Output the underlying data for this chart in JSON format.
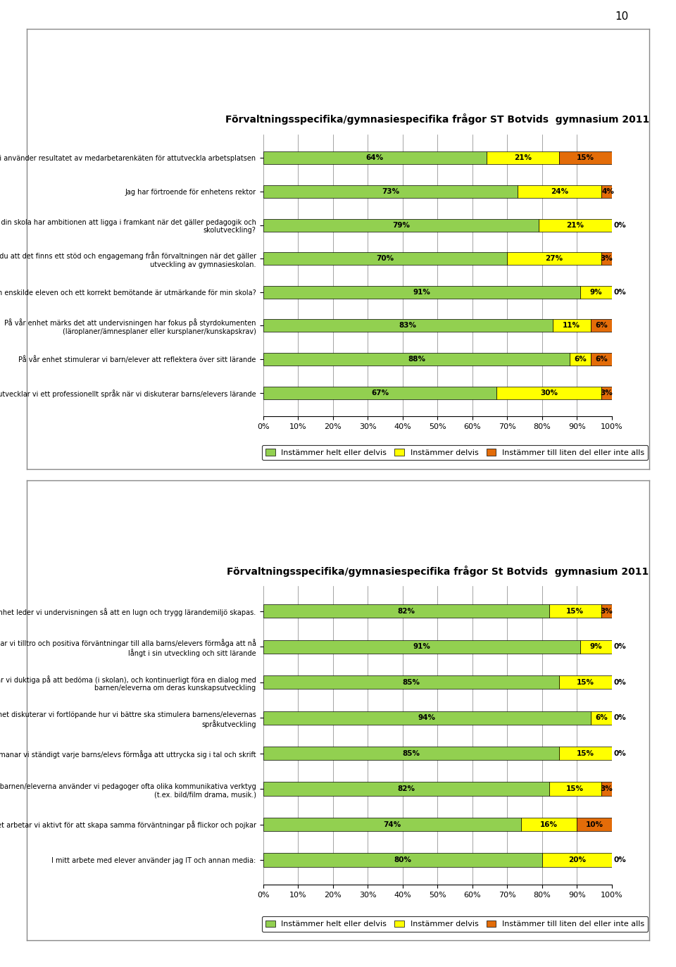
{
  "page_number": "10",
  "chart1": {
    "title": "Förvaltningsspecifika/gymnasiespecifika frågor ST Botvids  gymnasium 2011",
    "questions": [
      "Vi använder resultatet av medarbetarenkäten för attutveckla arbetsplatsen",
      "Jag har förtroende för enhetens rektor",
      "Anser du att din skola har ambitionen att ligga i framkant när det gäller pedagogik och\nskolutveckling?",
      "Upplever du att det finns ett stöd och engagemang från förvaltningen när det gäller\nutveckling av gymnasieskolan.",
      "Respekt för den enskilde eleven och ett korrekt bemötande är utmärkande för min skola?",
      "På vår enhet märks det att undervisningen har fokus på styrdokumenten\n(läroplaner/ämnesplaner eller kursplaner/kunskapskrav)",
      "På vår enhet stimulerar vi barn/elever att reflektera över sitt lärande",
      "På vår enhet utvecklar vi ett professionellt språk när vi diskuterar barns/elevers lärande"
    ],
    "values": [
      [
        64,
        21,
        15
      ],
      [
        73,
        24,
        4
      ],
      [
        79,
        21,
        0
      ],
      [
        70,
        27,
        3
      ],
      [
        91,
        9,
        0
      ],
      [
        83,
        11,
        6
      ],
      [
        88,
        6,
        6
      ],
      [
        67,
        30,
        3
      ]
    ],
    "bar_labels": [
      [
        "64%",
        "21%",
        "15%"
      ],
      [
        "73%",
        "24%",
        "4%"
      ],
      [
        "79%",
        "21%",
        "0%"
      ],
      [
        "70%",
        "27%",
        "3%"
      ],
      [
        "91%",
        "9%",
        "0%"
      ],
      [
        "83%",
        "11%",
        "6%"
      ],
      [
        "88%",
        "6%",
        "6%"
      ],
      [
        "67%",
        "30%",
        "3%"
      ]
    ],
    "colors": [
      "#92D050",
      "#FFFF00",
      "#E36C09"
    ],
    "legend_labels": [
      "Instämmer helt eller delvis",
      "Instämmer delvis",
      "Instämmer till liten del eller inte alls"
    ],
    "xlabel_ticks": [
      "0%",
      "10%",
      "20%",
      "30%",
      "40%",
      "50%",
      "60%",
      "70%",
      "80%",
      "90%",
      "100%"
    ]
  },
  "chart2": {
    "title": "Förvaltningsspecifika/gymnasiespecifika frågor St Botvids  gymnasium 2011",
    "questions": [
      "På vår enhet leder vi undervisningen så att en lugn och trygg lärandemiljö skapas.",
      "På vår enhet har vi tilltro och positiva förväntningar till alla barns/elevers förmåga att nå\nlångt i sin utveckling och sitt lärande",
      "På vår enhet är vi duktiga på att bedöma (i skolan), och kontinuerligt föra en dialog med\nbarnen/eleverna om deras kunskapsutveckling",
      "På vår enhet diskuterar vi fortlöpande hur vi bättre ska stimulera barnens/elevernas\nspråkutveckling",
      "På vår enhet utmanar vi ständigt varje barns/elevs förmåga att uttrycka sig i tal och skrift",
      "I vårt arbete med barnen/eleverna använder vi pedagoger ofta olika kommunikativa verktyg\n(t.ex. bild/film drama, musik.)",
      "På vår enhet arbetar vi aktivt för att skapa samma förväntningar på flickor och pojkar",
      "I mitt arbete med elever använder jag IT och annan media:"
    ],
    "values": [
      [
        82,
        15,
        3
      ],
      [
        91,
        9,
        0
      ],
      [
        85,
        15,
        0
      ],
      [
        94,
        6,
        0
      ],
      [
        85,
        15,
        0
      ],
      [
        82,
        15,
        3
      ],
      [
        74,
        16,
        10
      ],
      [
        80,
        20,
        0
      ]
    ],
    "bar_labels": [
      [
        "82%",
        "15%",
        "3%"
      ],
      [
        "91%",
        "9%",
        "0%"
      ],
      [
        "85%",
        "15%",
        "0%"
      ],
      [
        "94%",
        "6%",
        "0%"
      ],
      [
        "85%",
        "15%",
        "0%"
      ],
      [
        "82%",
        "15%",
        "3%"
      ],
      [
        "74%",
        "16%",
        "10%"
      ],
      [
        "80%",
        "20%",
        "0%"
      ]
    ],
    "colors": [
      "#92D050",
      "#FFFF00",
      "#E36C09"
    ],
    "legend_labels": [
      "Instämmer helt eller delvis",
      "Instämmer delvis",
      "Instämmer till liten del eller inte alls"
    ],
    "xlabel_ticks": [
      "0%",
      "10%",
      "20%",
      "30%",
      "40%",
      "50%",
      "60%",
      "70%",
      "80%",
      "90%",
      "100%"
    ]
  },
  "background_color": "#FFFFFF",
  "bar_label_fontsize": 7.5,
  "question_fontsize": 7.0,
  "title_fontsize": 10,
  "legend_fontsize": 8,
  "box_border_color": "#AAAAAA"
}
